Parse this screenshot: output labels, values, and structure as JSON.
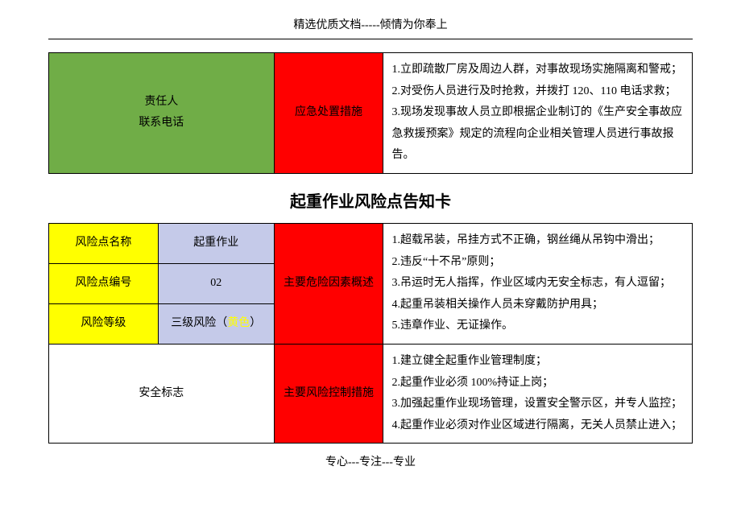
{
  "colors": {
    "green": "#70ad47",
    "red": "#ff0000",
    "yellow_bg": "#ffff00",
    "light_blue": "#c5cae9",
    "white": "#ffffff",
    "text": "#000000",
    "border": "#000000"
  },
  "doc_header": "精选优质文档-----倾情为你奉上",
  "doc_footer": "专心---专注---专业",
  "table1": {
    "left_line1": "责任人",
    "left_line2": "联系电话",
    "center_label": "应急处置措施",
    "right_items": [
      "1.立即疏散厂房及周边人群，对事故现场实施隔离和警戒；",
      "2.对受伤人员进行及时抢救，并拨打 120、110 电话求救；",
      "3.现场发现事故人员立即根据企业制订的《生产安全事故应急救援预案》规定的流程向企业相关管理人员进行事故报告。"
    ]
  },
  "section_title": "起重作业风险点告知卡",
  "table2": {
    "rows": [
      {
        "label": "风险点名称",
        "value": "起重作业"
      },
      {
        "label": "风险点编号",
        "value": "02"
      },
      {
        "label": "风险等级",
        "value_prefix": "三级风险（",
        "value_yellow": "黄色",
        "value_suffix": "）"
      }
    ],
    "hazard_label": "主要危险因素概述",
    "hazard_items": [
      "1.超载吊装，吊挂方式不正确，钢丝绳从吊钩中滑出；",
      "2.违反“十不吊”原则；",
      "3.吊运时无人指挥，作业区域内无安全标志，有人逗留；",
      "4.起重吊装相关操作人员未穿戴防护用具；",
      "5.违章作业、无证操作。"
    ],
    "safety_label": "安全标志",
    "control_label": "主要风险控制措施",
    "control_items": [
      "1.建立健全起重作业管理制度；",
      "2.起重作业必须 100%持证上岗；",
      "3.加强起重作业现场管理，设置安全警示区，并专人监控；",
      "4.起重作业必须对作业区域进行隔离，无关人员禁止进入；"
    ]
  }
}
